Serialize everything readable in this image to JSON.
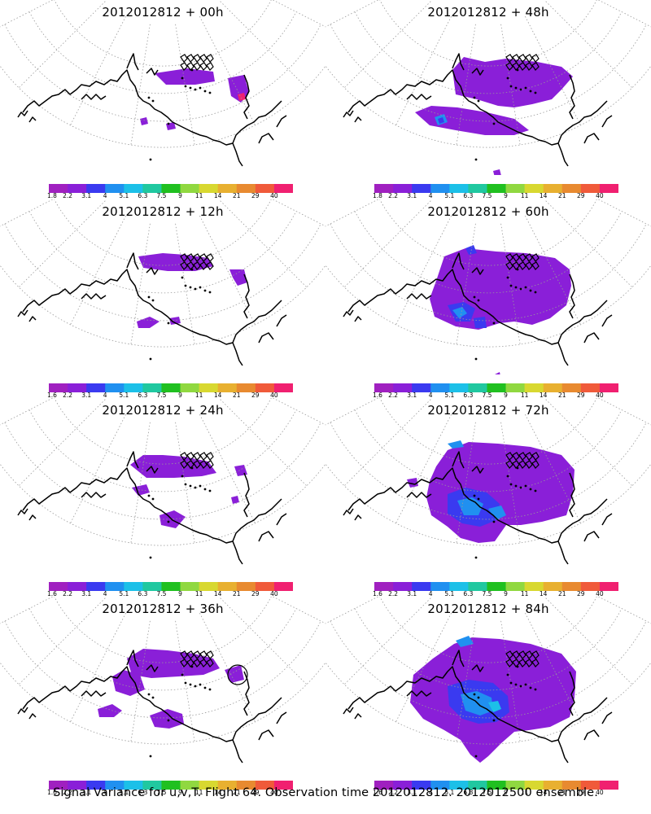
{
  "colorbar": {
    "colors": [
      "#a020c0",
      "#8a1fd8",
      "#3a3af0",
      "#2090f0",
      "#1cc0e8",
      "#20c8a0",
      "#20c020",
      "#90d840",
      "#d8d830",
      "#e8b030",
      "#e88a30",
      "#f05a3a",
      "#f02070"
    ],
    "labels": [
      "1.6",
      "2.2",
      "3.1",
      "4",
      "5.1",
      "6.3",
      "7.5",
      "9",
      "11",
      "14",
      "21",
      "29",
      "40"
    ],
    "labels_variant": [
      "1.8",
      "2.2",
      "3.1",
      "4",
      "5.1",
      "6.3",
      "7.5",
      "9",
      "11",
      "14",
      "21",
      "29",
      "40"
    ]
  },
  "panels": [
    {
      "id": "p00",
      "title": "2012012812 + 00h",
      "lead": 0
    },
    {
      "id": "p48",
      "title": "2012012812 + 48h",
      "lead": 48
    },
    {
      "id": "p12",
      "title": "2012012812 + 12h",
      "lead": 12
    },
    {
      "id": "p60",
      "title": "2012012812 + 60h",
      "lead": 60
    },
    {
      "id": "p24",
      "title": "2012012812 + 24h",
      "lead": 24
    },
    {
      "id": "p72",
      "title": "2012012812 + 72h",
      "lead": 72
    },
    {
      "id": "p36",
      "title": "2012012812 + 36h",
      "lead": 36
    },
    {
      "id": "p84",
      "title": "2012012812 + 84h",
      "lead": 84
    }
  ],
  "footer": "Signal Variance for u,v,T. Flight 64. Observation time 2012012812. 2012012500 ensemble."
}
